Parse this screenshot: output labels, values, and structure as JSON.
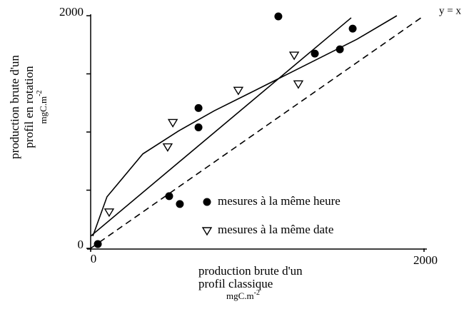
{
  "chart_data": {
    "type": "scatter",
    "y_label": [
      "production brute d'un",
      "profil en rotation"
    ],
    "x_label": [
      "production brute d'un",
      "profil classique"
    ],
    "unit": {
      "base": "mgC.m",
      "exp": "-2"
    },
    "xlim": [
      0,
      2000
    ],
    "ylim": [
      0,
      2000
    ],
    "xticks": [
      0,
      2000
    ],
    "yticks": [
      0,
      2000
    ],
    "yminor": [
      500,
      1000,
      1500
    ],
    "series": [
      {
        "name": "mesures à la même heure",
        "marker": "filled-circle",
        "color": "#000000",
        "x": [
          43,
          471,
          535,
          647,
          647,
          1126,
          1345,
          1495,
          1572
        ],
        "values": [
          37,
          449,
          381,
          1206,
          1040,
          1994,
          1674,
          1711,
          1889
        ]
      },
      {
        "name": "mesures à la même date",
        "marker": "open-triangle",
        "color": "#000000",
        "x": [
          111,
          462,
          493,
          886,
          1221,
          1246
        ],
        "values": [
          314,
          874,
          1083,
          1360,
          1662,
          1415
        ]
      }
    ],
    "lines": [
      {
        "name": "y = x",
        "style": "dashed",
        "x": [
          0,
          2000
        ],
        "values": [
          0,
          2000
        ]
      },
      {
        "style": "solid",
        "x": [
          0,
          1563
        ],
        "values": [
          105,
          1982
        ]
      },
      {
        "style": "solid",
        "x": [
          13,
          98,
          313,
          527,
          741,
          955,
          1169,
          1383,
          1597,
          1837
        ],
        "values": [
          105,
          443,
          812,
          1009,
          1182,
          1335,
          1489,
          1643,
          1797,
          2000
        ]
      }
    ]
  }
}
